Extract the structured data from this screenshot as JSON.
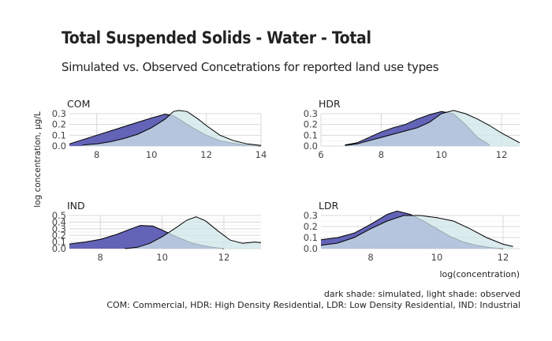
{
  "title": "Total Suspended Solids - Water - Total",
  "subtitle": "Simulated vs. Observed Concetrations for reported land use types",
  "ylabel": "log concentration, µg/L",
  "xlabel": "log(concentration)",
  "caption_line1": "dark shade: simulated, light shade: observed",
  "caption_line2": "COM: Commercial, HDR: High Density Residential, LDR: Low Density Residential, IND: Industrial",
  "colors": {
    "simulated": "#5b5bb3",
    "observed": "#cfe5ea",
    "grid": "#d8d8d8",
    "line": "#000000"
  },
  "chart_data": [
    {
      "type": "area",
      "panel": "COM",
      "xlim": [
        7,
        14
      ],
      "ylim": [
        0,
        0.3
      ],
      "xticks": [
        8,
        10,
        12,
        14
      ],
      "yticks": [
        0.0,
        0.1,
        0.2,
        0.3
      ],
      "ytick_labels": [
        "0.0",
        "0.1",
        "0.2",
        "0.3"
      ],
      "series": [
        {
          "role": "simulated",
          "x": [
            7,
            7.5,
            8,
            8.5,
            9,
            9.5,
            10,
            10.5,
            10.8,
            11,
            11.5,
            12,
            12.5,
            13,
            13.5,
            14
          ],
          "y": [
            0.02,
            0.06,
            0.1,
            0.14,
            0.18,
            0.22,
            0.26,
            0.295,
            0.28,
            0.25,
            0.17,
            0.1,
            0.05,
            0.025,
            0.01,
            0.0
          ]
        },
        {
          "role": "observed",
          "x": [
            7.5,
            8,
            8.5,
            9,
            9.5,
            10,
            10.5,
            10.8,
            11,
            11.3,
            11.7,
            12,
            12.5,
            13,
            13.5,
            14
          ],
          "y": [
            0.01,
            0.02,
            0.04,
            0.07,
            0.11,
            0.17,
            0.25,
            0.32,
            0.33,
            0.32,
            0.25,
            0.19,
            0.1,
            0.05,
            0.02,
            0.005
          ]
        }
      ]
    },
    {
      "type": "area",
      "panel": "HDR",
      "xlim": [
        6,
        12.6
      ],
      "ylim": [
        0,
        0.3
      ],
      "xticks": [
        6,
        8,
        10,
        12
      ],
      "yticks": [
        0.0,
        0.1,
        0.2,
        0.3
      ],
      "ytick_labels": [
        "0.0",
        "0.1",
        "0.2",
        "0.3"
      ],
      "series": [
        {
          "role": "simulated",
          "x": [
            6.8,
            7.2,
            7.6,
            8,
            8.4,
            8.8,
            9.2,
            9.6,
            10,
            10.4,
            10.8,
            11.2,
            11.6
          ],
          "y": [
            0.01,
            0.03,
            0.08,
            0.13,
            0.17,
            0.2,
            0.25,
            0.29,
            0.32,
            0.3,
            0.2,
            0.08,
            0.01
          ]
        },
        {
          "role": "observed",
          "x": [
            6.8,
            7.2,
            7.6,
            8,
            8.4,
            8.8,
            9.2,
            9.6,
            10,
            10.4,
            10.8,
            11.2,
            11.6,
            12,
            12.4,
            12.6
          ],
          "y": [
            0.005,
            0.02,
            0.05,
            0.08,
            0.11,
            0.14,
            0.17,
            0.22,
            0.3,
            0.33,
            0.3,
            0.25,
            0.19,
            0.12,
            0.06,
            0.03
          ]
        }
      ]
    },
    {
      "type": "area",
      "panel": "IND",
      "xlim": [
        7,
        13.2
      ],
      "ylim": [
        0,
        0.5
      ],
      "xticks": [
        8,
        10,
        12
      ],
      "yticks": [
        0.0,
        0.1,
        0.2,
        0.3,
        0.4,
        0.5
      ],
      "ytick_labels": [
        "0.0",
        "0.1",
        "0.2",
        "0.3",
        "0.4",
        "0.5"
      ],
      "series": [
        {
          "role": "simulated",
          "x": [
            7,
            7.5,
            8,
            8.5,
            9,
            9.3,
            9.7,
            10,
            10.5,
            11,
            11.5,
            12
          ],
          "y": [
            0.07,
            0.1,
            0.14,
            0.21,
            0.3,
            0.35,
            0.34,
            0.28,
            0.17,
            0.08,
            0.03,
            0.0
          ]
        },
        {
          "role": "observed",
          "x": [
            8.8,
            9.2,
            9.6,
            10,
            10.4,
            10.8,
            11.1,
            11.4,
            11.8,
            12.2,
            12.6,
            13,
            13.2
          ],
          "y": [
            0.0,
            0.02,
            0.08,
            0.18,
            0.3,
            0.43,
            0.48,
            0.42,
            0.27,
            0.13,
            0.08,
            0.1,
            0.09
          ]
        }
      ]
    },
    {
      "type": "area",
      "panel": "LDR",
      "xlim": [
        6.5,
        12.5
      ],
      "ylim": [
        0,
        0.3
      ],
      "xticks": [
        8,
        10,
        12
      ],
      "yticks": [
        0.0,
        0.1,
        0.2,
        0.3
      ],
      "ytick_labels": [
        "0.0",
        "0.1",
        "0.2",
        "0.3"
      ],
      "series": [
        {
          "role": "simulated",
          "x": [
            6.5,
            7,
            7.5,
            8,
            8.5,
            8.8,
            9.2,
            9.6,
            10,
            10.4,
            10.8,
            11.2,
            11.6,
            12
          ],
          "y": [
            0.08,
            0.1,
            0.14,
            0.22,
            0.31,
            0.34,
            0.31,
            0.25,
            0.18,
            0.11,
            0.06,
            0.03,
            0.01,
            0.0
          ]
        },
        {
          "role": "observed",
          "x": [
            6.5,
            7,
            7.5,
            8,
            8.5,
            9,
            9.5,
            10,
            10.5,
            11,
            11.5,
            12,
            12.3
          ],
          "y": [
            0.03,
            0.05,
            0.1,
            0.18,
            0.25,
            0.3,
            0.3,
            0.28,
            0.25,
            0.18,
            0.1,
            0.04,
            0.02
          ]
        }
      ]
    }
  ]
}
